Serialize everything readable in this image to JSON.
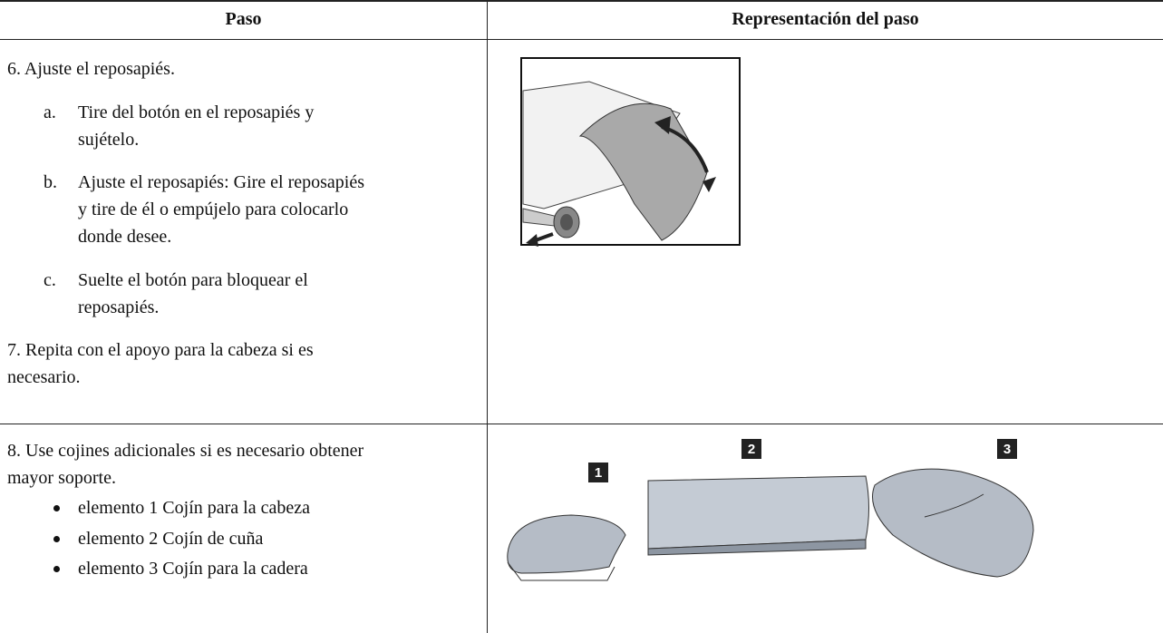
{
  "table": {
    "headers": [
      "Paso",
      "Representación del paso"
    ],
    "rows": [
      {
        "step": "6. Ajuste el reposapiés.",
        "substeps": [
          {
            "marker": "a.",
            "text": "Tire del botón en el reposapiés y sujételo."
          },
          {
            "marker": "b.",
            "text": "Ajuste el reposapiés: Gire el reposapiés y tire de él o empújelo para colocarlo donde desee."
          },
          {
            "marker": "c.",
            "text": "Suelte el botón para bloquear el reposapiés."
          }
        ],
        "note": "7. Repita con el apoyo para la cabeza si es necesario."
      },
      {
        "step": "8. Use cojines adicionales si es necesario obtener mayor soporte.",
        "bullets": [
          "elemento 1 Cojín para la cabeza",
          "elemento 2 Cojín de cuña",
          "elemento 3 Cojín para la cadera"
        ],
        "callouts": [
          "1",
          "2",
          "3"
        ]
      }
    ]
  }
}
